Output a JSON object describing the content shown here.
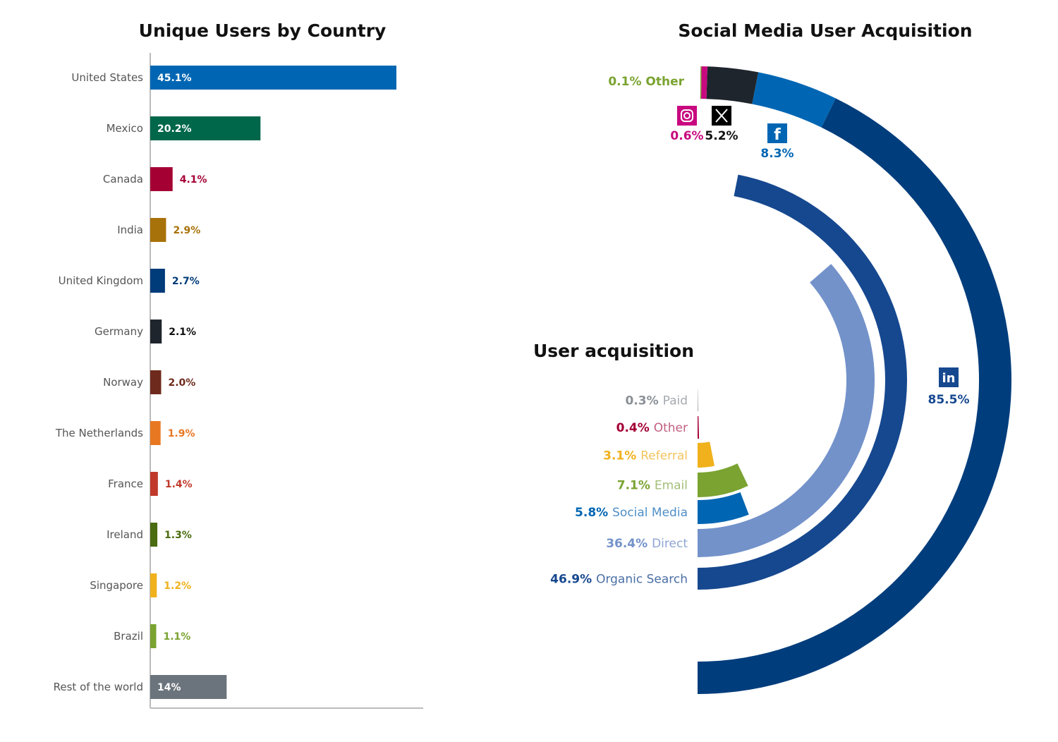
{
  "chart_data": [
    {
      "type": "bar",
      "orientation": "horizontal",
      "title": "Unique Users by Country",
      "unit": "%",
      "categories": [
        "United States",
        "Mexico",
        "Canada",
        "India",
        "United Kingdom",
        "Germany",
        "Norway",
        "The Netherlands",
        "France",
        "Ireland",
        "Singapore",
        "Brazil",
        "Rest of the world"
      ],
      "values": [
        45.1,
        20.2,
        4.1,
        2.9,
        2.7,
        2.1,
        2.0,
        1.9,
        1.4,
        1.3,
        1.2,
        1.1,
        14
      ],
      "labels": [
        "45.1%",
        "20.2%",
        "4.1%",
        "2.9%",
        "2.7%",
        "2.1%",
        "2.0%",
        "1.9%",
        "1.4%",
        "1.3%",
        "1.2%",
        "1.1%",
        "14%"
      ],
      "colors": [
        "#0066b3",
        "#00674a",
        "#a50034",
        "#a8720a",
        "#003b7a",
        "#1f252d",
        "#6e2a1c",
        "#e87722",
        "#c0392b",
        "#4a6b10",
        "#f0b11c",
        "#7aa331",
        "#6b747c"
      ],
      "label_colors": [
        "#ffffff",
        "#ffffff",
        "#a50034",
        "#a8720a",
        "#003b7a",
        "#111111",
        "#6e2a1c",
        "#e87722",
        "#c0392b",
        "#4a6b10",
        "#f0b11c",
        "#7aa331",
        "#ffffff"
      ],
      "xlim": [
        0,
        50
      ]
    },
    {
      "type": "radial-bar",
      "title": "Social Media User Acquisition",
      "series": [
        {
          "name": "LinkedIn",
          "value": 85.5,
          "label": "85.5%",
          "color": "#003d7c",
          "icon": "linkedin-icon"
        },
        {
          "name": "Facebook",
          "value": 8.3,
          "label": "8.3%",
          "color": "#0066b3",
          "icon": "facebook-icon"
        },
        {
          "name": "X",
          "value": 5.2,
          "label": "5.2%",
          "color": "#1f252d",
          "icon": "x-icon"
        },
        {
          "name": "Instagram",
          "value": 0.6,
          "label": "0.6%",
          "color": "#c8097f",
          "icon": "instagram-icon"
        },
        {
          "name": "Other",
          "value": 0.1,
          "label": "0.1% Other",
          "color": "#7aa331"
        }
      ]
    },
    {
      "type": "radial-bar",
      "title": "User acquisition",
      "series": [
        {
          "name": "Paid",
          "value": 0.3,
          "pct": "0.3%",
          "color": "#8a9096",
          "name_color": "#a5aaaf"
        },
        {
          "name": "Other",
          "value": 0.4,
          "pct": "0.4%",
          "color": "#a50034",
          "name_color": "#c0607f"
        },
        {
          "name": "Referral",
          "value": 3.1,
          "pct": "3.1%",
          "color": "#f0b11c",
          "name_color": "#f3c45e"
        },
        {
          "name": "Email",
          "value": 7.1,
          "pct": "7.1%",
          "color": "#7aa331",
          "name_color": "#a2bf79"
        },
        {
          "name": "Social Media",
          "value": 5.8,
          "pct": "5.8%",
          "color": "#0066b3",
          "name_color": "#4f8fc7"
        },
        {
          "name": "Direct",
          "value": 36.4,
          "pct": "36.4%",
          "color": "#7392ca",
          "name_color": "#8da5d3"
        },
        {
          "name": "Organic Search",
          "value": 46.9,
          "pct": "46.9%",
          "color": "#16488f",
          "name_color": "#4a6fa5"
        }
      ]
    }
  ]
}
